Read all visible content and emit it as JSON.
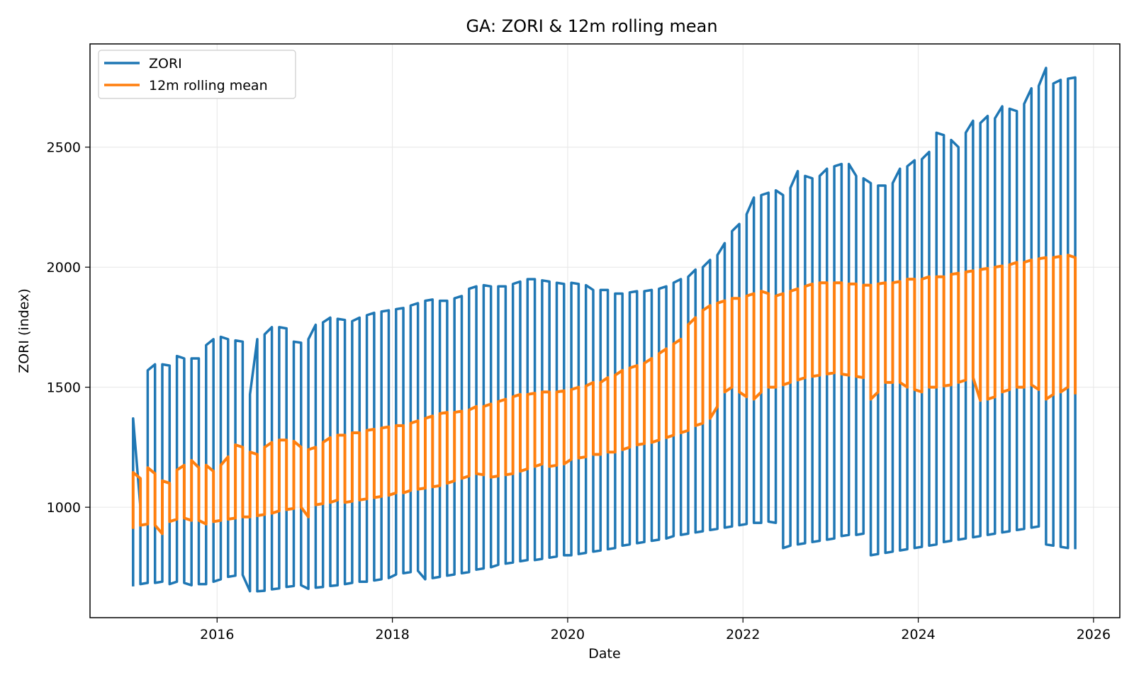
{
  "chart_data": {
    "type": "line",
    "title": "GA: ZORI & 12m rolling mean",
    "xlabel": "Date",
    "ylabel": "ZORI (index)",
    "xlim": [
      2014.55,
      2026.3
    ],
    "ylim": [
      540,
      2930
    ],
    "xticks": [
      "2016",
      "2018",
      "2020",
      "2022",
      "2024",
      "2026"
    ],
    "yticks": [
      "1000",
      "1500",
      "2000",
      "2500"
    ],
    "grid": true,
    "legend_position": "upper left",
    "series": [
      {
        "name": "ZORI",
        "color": "#1f77b4",
        "note": "monthly values; each month plotted as a vertical spread between low and high",
        "dates": [
          "2015-01",
          "2015-02",
          "2015-03",
          "2015-04",
          "2015-05",
          "2015-06",
          "2015-07",
          "2015-08",
          "2015-09",
          "2015-10",
          "2015-11",
          "2015-12",
          "2016-01",
          "2016-02",
          "2016-03",
          "2016-04",
          "2016-05",
          "2016-06",
          "2016-07",
          "2016-08",
          "2016-09",
          "2016-10",
          "2016-11",
          "2016-12",
          "2017-01",
          "2017-02",
          "2017-03",
          "2017-04",
          "2017-05",
          "2017-06",
          "2017-07",
          "2017-08",
          "2017-09",
          "2017-10",
          "2017-11",
          "2017-12",
          "2018-01",
          "2018-02",
          "2018-03",
          "2018-04",
          "2018-05",
          "2018-06",
          "2018-07",
          "2018-08",
          "2018-09",
          "2018-10",
          "2018-11",
          "2018-12",
          "2019-01",
          "2019-02",
          "2019-03",
          "2019-04",
          "2019-05",
          "2019-06",
          "2019-07",
          "2019-08",
          "2019-09",
          "2019-10",
          "2019-11",
          "2019-12",
          "2020-01",
          "2020-02",
          "2020-03",
          "2020-04",
          "2020-05",
          "2020-06",
          "2020-07",
          "2020-08",
          "2020-09",
          "2020-10",
          "2020-11",
          "2020-12",
          "2021-01",
          "2021-02",
          "2021-03",
          "2021-04",
          "2021-05",
          "2021-06",
          "2021-07",
          "2021-08",
          "2021-09",
          "2021-10",
          "2021-11",
          "2021-12",
          "2022-01",
          "2022-02",
          "2022-03",
          "2022-04",
          "2022-05",
          "2022-06",
          "2022-07",
          "2022-08",
          "2022-09",
          "2022-10",
          "2022-11",
          "2022-12",
          "2023-01",
          "2023-02",
          "2023-03",
          "2023-04",
          "2023-05",
          "2023-06",
          "2023-07",
          "2023-08",
          "2023-09",
          "2023-10",
          "2023-11",
          "2023-12",
          "2024-01",
          "2024-02",
          "2024-03",
          "2024-04",
          "2024-05",
          "2024-06",
          "2024-07",
          "2024-08",
          "2024-09",
          "2024-10",
          "2024-11",
          "2024-12",
          "2025-01",
          "2025-02",
          "2025-03",
          "2025-04",
          "2025-05",
          "2025-06",
          "2025-07",
          "2025-08",
          "2025-09",
          "2025-10"
        ],
        "low": [
          670,
          680,
          685,
          685,
          690,
          680,
          690,
          685,
          675,
          680,
          680,
          690,
          700,
          710,
          715,
          718,
          650,
          650,
          652,
          658,
          662,
          668,
          672,
          675,
          660,
          665,
          668,
          672,
          675,
          680,
          685,
          690,
          690,
          695,
          700,
          705,
          720,
          725,
          730,
          735,
          700,
          705,
          710,
          715,
          720,
          725,
          730,
          740,
          745,
          750,
          760,
          765,
          770,
          775,
          780,
          780,
          785,
          790,
          795,
          800,
          800,
          805,
          810,
          815,
          820,
          825,
          830,
          840,
          845,
          850,
          855,
          860,
          865,
          870,
          880,
          885,
          890,
          895,
          900,
          905,
          910,
          915,
          920,
          925,
          930,
          935,
          935,
          940,
          935,
          830,
          840,
          845,
          850,
          855,
          860,
          865,
          870,
          880,
          885,
          885,
          890,
          800,
          805,
          810,
          815,
          820,
          825,
          830,
          835,
          840,
          845,
          855,
          860,
          865,
          870,
          875,
          880,
          885,
          890,
          895,
          900,
          905,
          910,
          915,
          920,
          845,
          840,
          835,
          830,
          825
        ],
        "high": [
          1370,
          1000,
          1570,
          1595,
          1595,
          1590,
          1630,
          1620,
          1620,
          1620,
          1675,
          1700,
          1710,
          1700,
          1695,
          1690,
          1470,
          1700,
          1720,
          1750,
          1750,
          1745,
          1690,
          1685,
          1700,
          1760,
          1770,
          1790,
          1785,
          1780,
          1775,
          1790,
          1800,
          1810,
          1815,
          1820,
          1825,
          1830,
          1840,
          1850,
          1860,
          1865,
          1860,
          1860,
          1870,
          1880,
          1910,
          1920,
          1925,
          1920,
          1920,
          1920,
          1930,
          1940,
          1950,
          1950,
          1945,
          1940,
          1935,
          1930,
          1935,
          1930,
          1925,
          1905,
          1905,
          1905,
          1890,
          1890,
          1895,
          1900,
          1900,
          1905,
          1910,
          1920,
          1935,
          1950,
          1960,
          1990,
          2000,
          2030,
          2050,
          2100,
          2150,
          2180,
          2220,
          2290,
          2300,
          2310,
          2320,
          2300,
          2330,
          2400,
          2380,
          2370,
          2380,
          2410,
          2420,
          2430,
          2430,
          2380,
          2370,
          2350,
          2340,
          2340,
          2350,
          2410,
          2420,
          2445,
          2450,
          2480,
          2560,
          2550,
          2530,
          2500,
          2560,
          2610,
          2600,
          2630,
          2620,
          2670,
          2660,
          2650,
          2680,
          2745,
          2755,
          2830,
          2765,
          2780,
          2785,
          2790
        ]
      },
      {
        "name": "12m rolling mean",
        "color": "#ff7f0e",
        "note": "rolling mean with a vertical spread per month",
        "dates": [
          "2015-01",
          "2015-02",
          "2015-03",
          "2015-04",
          "2015-05",
          "2015-06",
          "2015-07",
          "2015-08",
          "2015-09",
          "2015-10",
          "2015-11",
          "2015-12",
          "2016-01",
          "2016-02",
          "2016-03",
          "2016-04",
          "2016-05",
          "2016-06",
          "2016-07",
          "2016-08",
          "2016-09",
          "2016-10",
          "2016-11",
          "2016-12",
          "2017-01",
          "2017-02",
          "2017-03",
          "2017-04",
          "2017-05",
          "2017-06",
          "2017-07",
          "2017-08",
          "2017-09",
          "2017-10",
          "2017-11",
          "2017-12",
          "2018-01",
          "2018-02",
          "2018-03",
          "2018-04",
          "2018-05",
          "2018-06",
          "2018-07",
          "2018-08",
          "2018-09",
          "2018-10",
          "2018-11",
          "2018-12",
          "2019-01",
          "2019-02",
          "2019-03",
          "2019-04",
          "2019-05",
          "2019-06",
          "2019-07",
          "2019-08",
          "2019-09",
          "2019-10",
          "2019-11",
          "2019-12",
          "2020-01",
          "2020-02",
          "2020-03",
          "2020-04",
          "2020-05",
          "2020-06",
          "2020-07",
          "2020-08",
          "2020-09",
          "2020-10",
          "2020-11",
          "2020-12",
          "2021-01",
          "2021-02",
          "2021-03",
          "2021-04",
          "2021-05",
          "2021-06",
          "2021-07",
          "2021-08",
          "2021-09",
          "2021-10",
          "2021-11",
          "2021-12",
          "2022-01",
          "2022-02",
          "2022-03",
          "2022-04",
          "2022-05",
          "2022-06",
          "2022-07",
          "2022-08",
          "2022-09",
          "2022-10",
          "2022-11",
          "2022-12",
          "2023-01",
          "2023-02",
          "2023-03",
          "2023-04",
          "2023-05",
          "2023-06",
          "2023-07",
          "2023-08",
          "2023-09",
          "2023-10",
          "2023-11",
          "2023-12",
          "2024-01",
          "2024-02",
          "2024-03",
          "2024-04",
          "2024-05",
          "2024-06",
          "2024-07",
          "2024-08",
          "2024-09",
          "2024-10",
          "2024-11",
          "2024-12",
          "2025-01",
          "2025-02",
          "2025-03",
          "2025-04",
          "2025-05",
          "2025-06",
          "2025-07",
          "2025-08",
          "2025-09",
          "2025-10"
        ],
        "low": [
          910,
          925,
          930,
          925,
          890,
          940,
          950,
          955,
          945,
          945,
          930,
          940,
          945,
          950,
          955,
          960,
          960,
          965,
          970,
          975,
          985,
          990,
          995,
          1000,
          960,
          1010,
          1015,
          1020,
          1030,
          1020,
          1025,
          1030,
          1035,
          1040,
          1045,
          1050,
          1060,
          1060,
          1070,
          1075,
          1080,
          1085,
          1090,
          1100,
          1110,
          1120,
          1130,
          1140,
          1135,
          1125,
          1130,
          1135,
          1140,
          1150,
          1160,
          1170,
          1180,
          1170,
          1175,
          1180,
          1200,
          1205,
          1210,
          1220,
          1220,
          1230,
          1230,
          1240,
          1250,
          1260,
          1265,
          1270,
          1280,
          1290,
          1300,
          1310,
          1320,
          1340,
          1350,
          1370,
          1420,
          1480,
          1500,
          1480,
          1460,
          1450,
          1480,
          1500,
          1500,
          1510,
          1520,
          1530,
          1540,
          1545,
          1550,
          1555,
          1560,
          1555,
          1550,
          1545,
          1540,
          1450,
          1480,
          1520,
          1520,
          1520,
          1500,
          1490,
          1480,
          1500,
          1500,
          1505,
          1510,
          1520,
          1530,
          1540,
          1445,
          1450,
          1460,
          1480,
          1490,
          1500,
          1500,
          1510,
          1490,
          1450,
          1470,
          1480,
          1500,
          1470
        ],
        "high": [
          1145,
          1120,
          1165,
          1140,
          1110,
          1100,
          1155,
          1175,
          1195,
          1165,
          1175,
          1150,
          1175,
          1210,
          1260,
          1250,
          1230,
          1220,
          1250,
          1270,
          1280,
          1280,
          1275,
          1250,
          1240,
          1250,
          1270,
          1290,
          1300,
          1300,
          1310,
          1310,
          1320,
          1325,
          1330,
          1335,
          1340,
          1340,
          1350,
          1360,
          1370,
          1380,
          1390,
          1395,
          1395,
          1400,
          1405,
          1420,
          1420,
          1430,
          1440,
          1450,
          1460,
          1470,
          1470,
          1475,
          1480,
          1480,
          1480,
          1485,
          1490,
          1500,
          1505,
          1520,
          1520,
          1540,
          1550,
          1570,
          1580,
          1590,
          1600,
          1620,
          1640,
          1660,
          1680,
          1700,
          1760,
          1790,
          1820,
          1840,
          1850,
          1860,
          1870,
          1870,
          1880,
          1890,
          1900,
          1890,
          1880,
          1890,
          1900,
          1910,
          1920,
          1930,
          1935,
          1935,
          1935,
          1935,
          1930,
          1930,
          1925,
          1925,
          1930,
          1935,
          1935,
          1940,
          1950,
          1950,
          1950,
          1960,
          1960,
          1960,
          1970,
          1975,
          1980,
          1985,
          1990,
          1995,
          2000,
          2005,
          2010,
          2020,
          2020,
          2030,
          2035,
          2040,
          2040,
          2045,
          2050,
          2040
        ]
      }
    ]
  }
}
